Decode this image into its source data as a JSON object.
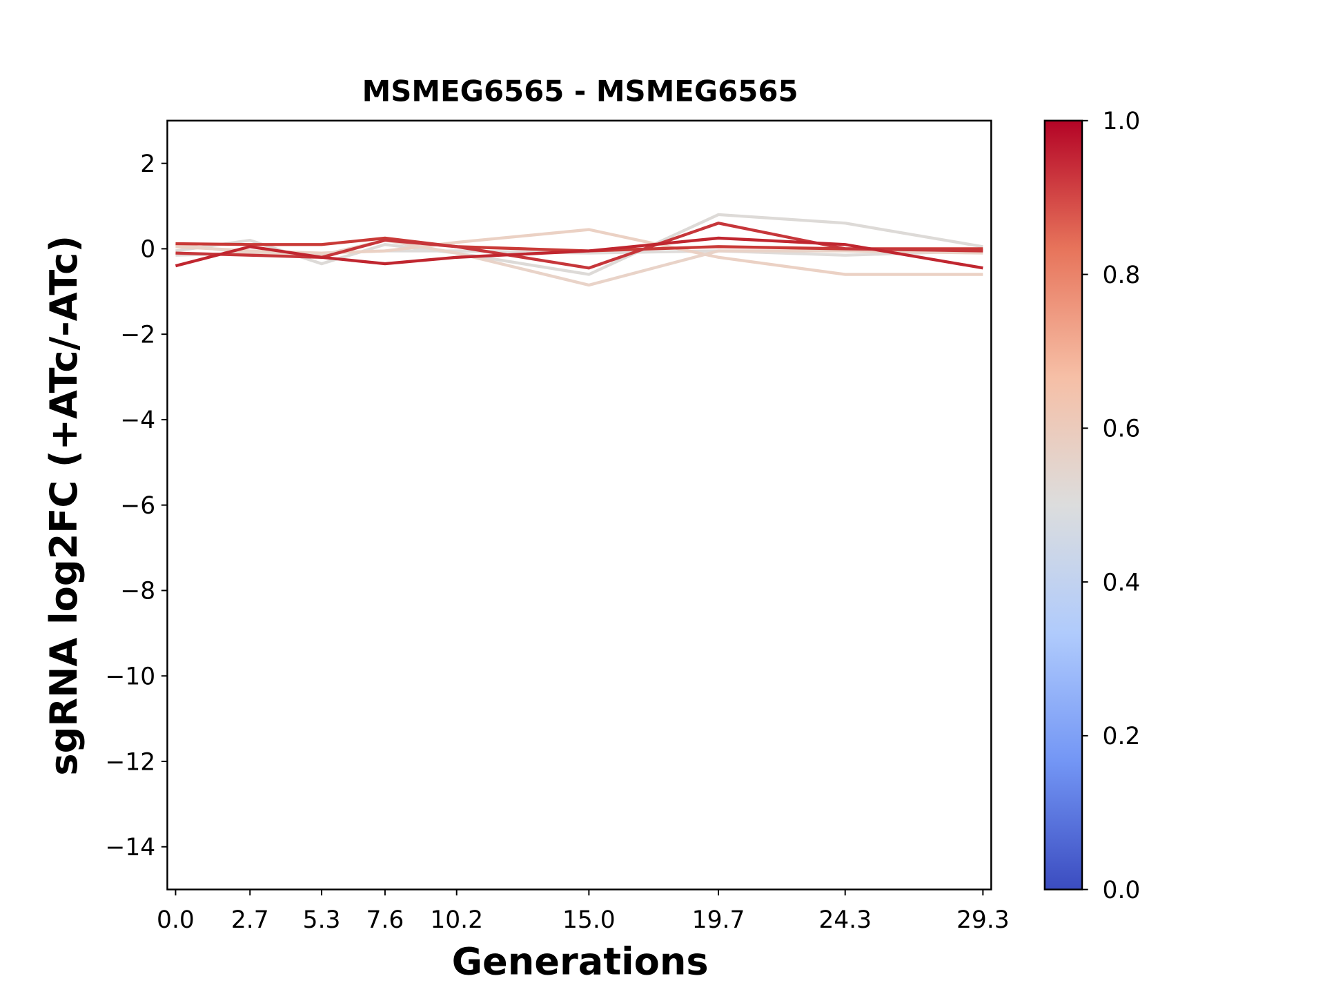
{
  "chart_data": {
    "type": "line",
    "title": "MSMEG6565 - MSMEG6565",
    "xlabel": "Generations",
    "ylabel": "sgRNA log2FC (+ATc/-ATc)",
    "x": [
      0.0,
      2.7,
      5.3,
      7.6,
      10.2,
      15.0,
      19.7,
      24.3,
      29.3
    ],
    "x_tick_labels": [
      "0.0",
      "2.7",
      "5.3",
      "7.6",
      "10.2",
      "15.0",
      "19.7",
      "24.3",
      "29.3"
    ],
    "ylim": [
      -15,
      3
    ],
    "y_ticks": [
      2,
      0,
      -2,
      -4,
      -6,
      -8,
      -10,
      -12,
      -14
    ],
    "y_tick_labels": [
      "2",
      "0",
      "−2",
      "−4",
      "−6",
      "−8",
      "−10",
      "−12",
      "−14"
    ],
    "grid": false,
    "colormap": "coolwarm",
    "colorbar": {
      "range": [
        0.0,
        1.0
      ],
      "tick_labels": [
        "0.0",
        "0.2",
        "0.4",
        "0.6",
        "0.8",
        "1.0"
      ],
      "colors": [
        "#3b4cc0",
        "#7396f5",
        "#b0cbfc",
        "#dcdddd",
        "#f6bfa6",
        "#e7745b",
        "#b40426"
      ]
    },
    "series": [
      {
        "color_value": 0.5,
        "color": "#dddad7",
        "values": [
          -0.05,
          0.2,
          -0.35,
          0.1,
          -0.1,
          -0.6,
          0.8,
          0.6,
          0.05
        ]
      },
      {
        "color_value": 0.52,
        "color": "#dfdcda",
        "values": [
          -0.15,
          -0.1,
          -0.1,
          -0.05,
          -0.05,
          -0.1,
          -0.05,
          -0.15,
          -0.05
        ]
      },
      {
        "color_value": 0.6,
        "color": "#ebd1c4",
        "values": [
          0.05,
          -0.05,
          -0.1,
          -0.05,
          0.15,
          0.45,
          -0.2,
          -0.6,
          -0.6
        ]
      },
      {
        "color_value": 0.58,
        "color": "#e9d3c8",
        "values": [
          0.1,
          -0.1,
          -0.15,
          0.2,
          -0.1,
          -0.85,
          -0.05,
          -0.05,
          -0.1
        ]
      },
      {
        "color_value": 0.92,
        "color": "#c93a37",
        "values": [
          0.12,
          0.1,
          0.1,
          0.25,
          0.05,
          -0.05,
          0.05,
          0.0,
          0.0
        ]
      },
      {
        "color_value": 0.93,
        "color": "#c6363a",
        "values": [
          -0.1,
          -0.15,
          -0.2,
          0.2,
          0.05,
          -0.45,
          0.6,
          0.0,
          -0.05
        ]
      },
      {
        "color_value": 0.96,
        "color": "#c0262f",
        "values": [
          -0.4,
          0.05,
          -0.2,
          -0.35,
          -0.2,
          -0.05,
          0.25,
          0.1,
          -0.45
        ]
      }
    ]
  }
}
